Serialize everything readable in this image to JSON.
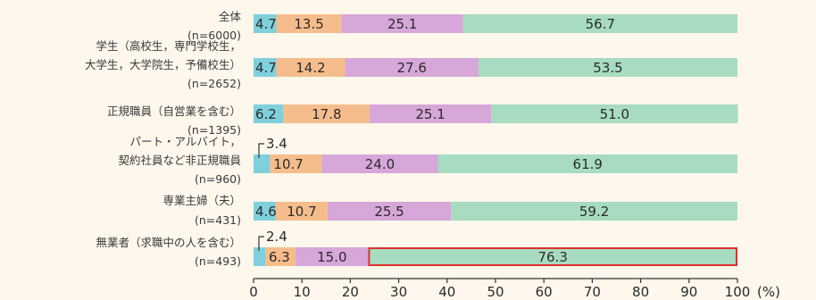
{
  "chart_data": {
    "type": "bar",
    "orientation": "horizontal",
    "stacked": true,
    "unit_label": "(%)",
    "xlim": [
      0,
      100
    ],
    "x_ticks": [
      0,
      10,
      20,
      30,
      40,
      50,
      60,
      70,
      80,
      90,
      100
    ],
    "categories": [
      {
        "lines": [
          "全体"
        ],
        "n": "(n=6000)"
      },
      {
        "lines": [
          "学生（高校生，専門学校生，",
          "大学生，大学院生，予備校生）"
        ],
        "n": "(n=2652)"
      },
      {
        "lines": [
          "正規職員（自営業を含む）"
        ],
        "n": "(n=1395)"
      },
      {
        "lines": [
          "パート・アルバイト，",
          "契約社員など非正規職員"
        ],
        "n": "(n=960)"
      },
      {
        "lines": [
          "専業主婦（夫）"
        ],
        "n": "(n=431)"
      },
      {
        "lines": [
          "無業者（求職中の人を含む）"
        ],
        "n": "(n=493)"
      }
    ],
    "series": [
      {
        "color": "#7fd0dc",
        "values": [
          4.7,
          4.7,
          6.2,
          3.4,
          4.6,
          2.4
        ]
      },
      {
        "color": "#f6bd8c",
        "values": [
          13.5,
          14.2,
          17.8,
          10.7,
          10.7,
          6.3
        ]
      },
      {
        "color": "#d6a7d8",
        "values": [
          25.1,
          27.6,
          25.1,
          24.0,
          25.5,
          15.0
        ]
      },
      {
        "color": "#a8dcc0",
        "values": [
          56.7,
          53.5,
          51.0,
          61.9,
          59.2,
          76.3
        ]
      }
    ],
    "data_labels": [
      [
        "4.7",
        "13.5",
        "25.1",
        "56.7"
      ],
      [
        "4.7",
        "14.2",
        "27.6",
        "53.5"
      ],
      [
        "6.2",
        "17.8",
        "25.1",
        "51.0"
      ],
      [
        "3.4",
        "10.7",
        "24.0",
        "61.9"
      ],
      [
        "4.6",
        "10.7",
        "25.5",
        "59.2"
      ],
      [
        "2.4",
        "6.3",
        "15.0",
        "76.3"
      ]
    ],
    "highlight": {
      "category_index": 5,
      "series_index": 3,
      "color": "#e0302c"
    },
    "grid": false
  }
}
